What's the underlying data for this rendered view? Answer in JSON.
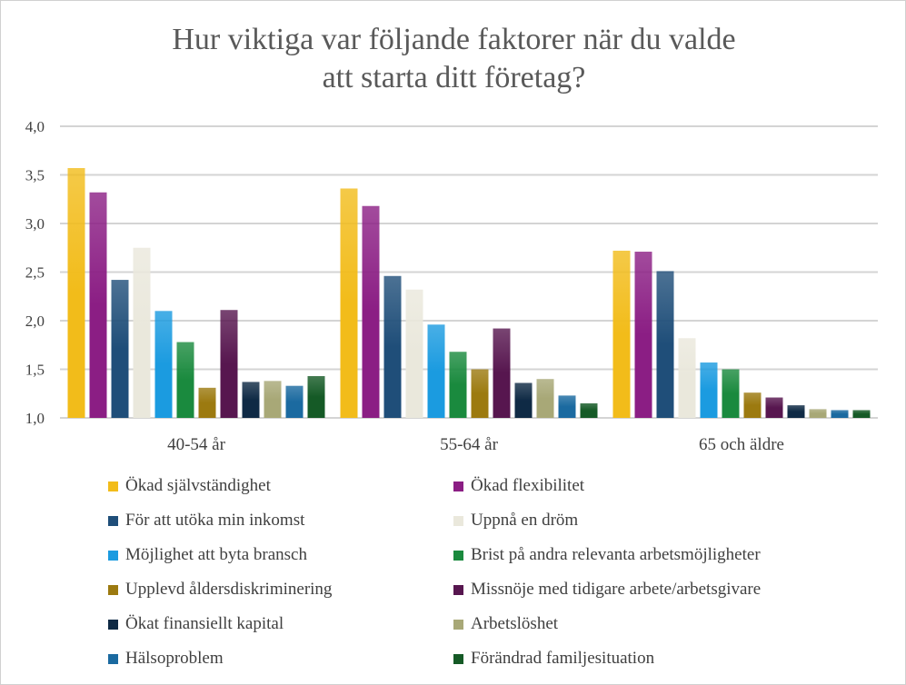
{
  "chart_data": {
    "type": "bar",
    "title": "Hur viktiga var följande faktorer när du valde att starta ditt företag?",
    "title_lines": [
      "Hur viktiga var följande faktorer när du valde",
      "att starta ditt företag?"
    ],
    "categories": [
      "40-54 år",
      "55-64 år",
      "65 och äldre"
    ],
    "ylim": [
      1.0,
      4.0
    ],
    "yticks": [
      "1,0",
      "1,5",
      "2,0",
      "2,5",
      "3,0",
      "3,5",
      "4,0"
    ],
    "grid": true,
    "legend_position": "bottom",
    "series": [
      {
        "name": "Ökad självständighet",
        "color": "#F2BC1A",
        "values": [
          3.57,
          3.36,
          2.72
        ]
      },
      {
        "name": "Ökad flexibilitet",
        "color": "#8B1E84",
        "values": [
          3.32,
          3.18,
          2.71
        ]
      },
      {
        "name": "För att utöka min inkomst",
        "color": "#1F4E79",
        "values": [
          2.42,
          2.46,
          2.51
        ]
      },
      {
        "name": "Uppnå en dröm",
        "color": "#EAE8DC",
        "values": [
          2.75,
          2.32,
          1.82
        ]
      },
      {
        "name": "Möjlighet att byta bransch",
        "color": "#1B9BE0",
        "values": [
          2.1,
          1.96,
          1.57
        ]
      },
      {
        "name": "Brist på andra relevanta arbetsmöjligheter",
        "color": "#1A8A3E",
        "values": [
          1.78,
          1.68,
          1.5
        ]
      },
      {
        "name": "Upplevd åldersdiskriminering",
        "color": "#9C7A10",
        "values": [
          1.31,
          1.5,
          1.26
        ]
      },
      {
        "name": "Missnöje med tidigare arbete/arbetsgivare",
        "color": "#57164F",
        "values": [
          2.11,
          1.92,
          1.21
        ]
      },
      {
        "name": "Ökat finansiellt kapital",
        "color": "#0F2A45",
        "values": [
          1.37,
          1.36,
          1.13
        ]
      },
      {
        "name": "Arbetslöshet",
        "color": "#A8A877",
        "values": [
          1.38,
          1.4,
          1.09
        ]
      },
      {
        "name": "Hälsoproblem",
        "color": "#1B6AA0",
        "values": [
          1.33,
          1.23,
          1.08
        ]
      },
      {
        "name": "Förändrad familjesituation",
        "color": "#155A26",
        "values": [
          1.43,
          1.15,
          1.08
        ]
      }
    ]
  }
}
